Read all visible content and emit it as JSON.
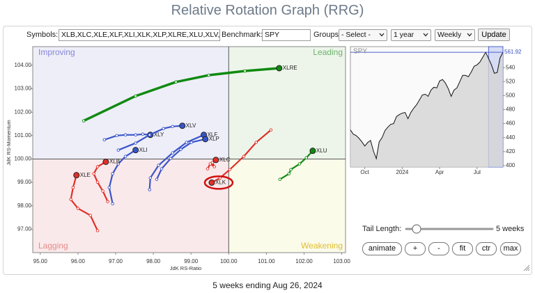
{
  "header": {
    "title": "Relative Rotation Graph (RRG)"
  },
  "controls": {
    "symbols_label": "Symbols:",
    "symbols_value": "XLB,XLC,XLE,XLF,XLI,XLK,XLP,XLRE,XLU,XLV,XL",
    "benchmark_label": "Benchmark:",
    "benchmark_value": "SPY",
    "groups_label": "Groups:",
    "groups_value": "- Select -",
    "period_value": "1 year",
    "frequency_value": "Weekly",
    "update_button": "Update"
  },
  "chart_data": [
    {
      "type": "scatter",
      "x_label": "JdK RS-Ratio",
      "y_label": "JdK RS-Momentum",
      "quadrant_labels": {
        "improving": "Improving",
        "leading": "Leading",
        "lagging": "Lagging",
        "weakening": "Weakening"
      },
      "center": {
        "x": 100,
        "y": 100
      },
      "xlim": [
        94.8,
        103.1
      ],
      "ylim": [
        96.0,
        104.8
      ],
      "xticks": [
        {
          "value": 95,
          "label": "95.00"
        },
        {
          "value": 96,
          "label": "96.00"
        },
        {
          "value": 97,
          "label": "97.00"
        },
        {
          "value": 98,
          "label": "98.00"
        },
        {
          "value": 99,
          "label": "99.00"
        },
        {
          "value": 100,
          "label": "100.00"
        },
        {
          "value": 101,
          "label": "101.00"
        },
        {
          "value": 102,
          "label": "102.00"
        },
        {
          "value": 103,
          "label": "103.00"
        }
      ],
      "yticks": [
        {
          "value": 97,
          "label": "97.00"
        },
        {
          "value": 98,
          "label": "98.00"
        },
        {
          "value": 99,
          "label": "99.00"
        },
        {
          "value": 100,
          "label": "100.00"
        },
        {
          "value": 101,
          "label": "101.00"
        },
        {
          "value": 102,
          "label": "102.00"
        },
        {
          "value": 103,
          "label": "103.00"
        },
        {
          "value": 104,
          "label": "104.00"
        }
      ],
      "series": [
        {
          "name": "XLRE",
          "color": "#108a10",
          "x": [
            96.15,
            97.53,
            98.6,
            99.47,
            100.43,
            101.34
          ],
          "values": [
            101.63,
            102.69,
            103.29,
            103.58,
            103.76,
            103.88
          ]
        },
        {
          "name": "XLY",
          "color": "#3a55c8",
          "x": [
            96.7,
            97.03,
            97.26,
            97.53,
            97.72,
            97.92
          ],
          "values": [
            100.82,
            101.0,
            101.03,
            101.03,
            101.06,
            101.03
          ]
        },
        {
          "name": "XLV",
          "color": "#3a55c8",
          "x": [
            97.07,
            97.53,
            97.9,
            98.27,
            98.51,
            98.77
          ],
          "values": [
            100.38,
            100.68,
            101.03,
            101.3,
            101.39,
            101.42
          ]
        },
        {
          "name": "XLI",
          "color": "#3a55c8",
          "x": [
            96.92,
            96.83,
            96.92,
            97.07,
            97.26,
            97.53
          ],
          "values": [
            98.09,
            98.78,
            99.37,
            99.79,
            100.11,
            100.38
          ]
        },
        {
          "name": "XLB",
          "color": "#e0302a",
          "x": [
            96.79,
            96.66,
            96.52,
            96.42,
            96.52,
            96.74
          ],
          "values": [
            98.18,
            98.63,
            99.01,
            99.37,
            99.67,
            99.88
          ]
        },
        {
          "name": "XLE",
          "color": "#e0302a",
          "x": [
            96.52,
            96.33,
            96.0,
            95.81,
            95.87,
            95.96
          ],
          "values": [
            96.94,
            97.59,
            97.89,
            98.27,
            98.78,
            99.31
          ]
        },
        {
          "name": "XLF",
          "color": "#3a55c8",
          "x": [
            97.9,
            97.92,
            98.14,
            98.51,
            98.88,
            99.34
          ],
          "values": [
            98.69,
            99.19,
            99.73,
            100.26,
            100.71,
            101.03
          ]
        },
        {
          "name": "XLP",
          "color": "#3a55c8",
          "x": [
            98.09,
            98.22,
            98.46,
            98.73,
            99.01,
            99.38
          ],
          "values": [
            99.13,
            99.58,
            100.02,
            100.41,
            100.71,
            100.85
          ]
        },
        {
          "name": "XLC",
          "color": "#e0302a",
          "x": [
            99.44,
            99.51,
            99.62,
            99.57,
            99.62,
            99.66
          ],
          "values": [
            99.58,
            99.79,
            99.67,
            99.85,
            99.91,
            99.96
          ]
        },
        {
          "name": "XLK",
          "color": "#e0302a",
          "x": [
            101.12,
            100.73,
            100.4,
            100.03,
            99.77,
            99.55
          ],
          "values": [
            101.24,
            100.71,
            100.11,
            99.55,
            99.19,
            98.99
          ]
        },
        {
          "name": "XLU",
          "color": "#108a10",
          "x": [
            101.36,
            101.6,
            101.65,
            101.88,
            102.06,
            102.23
          ],
          "values": [
            99.13,
            99.37,
            99.55,
            99.79,
            100.05,
            100.35
          ]
        }
      ]
    },
    {
      "type": "line",
      "title": "SPY",
      "color": "#111111",
      "categories": [
        null,
        null,
        null,
        null,
        null,
        "Oct",
        null,
        null,
        null,
        null,
        null,
        null,
        null,
        null,
        null,
        null,
        null,
        null,
        "2024",
        null,
        null,
        null,
        null,
        null,
        null,
        null,
        null,
        null,
        null,
        null,
        null,
        "Apr",
        null,
        null,
        null,
        null,
        null,
        null,
        null,
        null,
        null,
        null,
        null,
        null,
        "Jul",
        null,
        null,
        null,
        null,
        null,
        null,
        null,
        null,
        null
      ],
      "values": [
        451,
        445,
        443,
        439,
        434,
        428,
        433,
        436,
        421,
        410,
        434,
        440,
        450,
        455,
        459,
        460,
        470,
        473,
        475,
        476,
        467,
        476,
        482,
        487,
        494,
        501,
        502,
        499,
        508,
        512,
        511,
        521,
        523,
        518,
        510,
        499,
        508,
        511,
        520,
        529,
        529,
        527,
        534,
        542,
        544,
        548,
        555,
        562,
        553,
        544,
        532,
        533,
        554,
        561.92
      ],
      "ylim": [
        398,
        570
      ],
      "yticks": [
        400,
        420,
        440,
        460,
        480,
        500,
        520,
        540
      ]
    }
  ],
  "tail_controls": {
    "label": "Tail Length:",
    "value_text": "5 weeks",
    "buttons": [
      "animate",
      "+",
      "-",
      "fit",
      "ctr",
      "max"
    ]
  },
  "footer": {
    "text": "5 weeks ending Aug 26, 2024"
  }
}
